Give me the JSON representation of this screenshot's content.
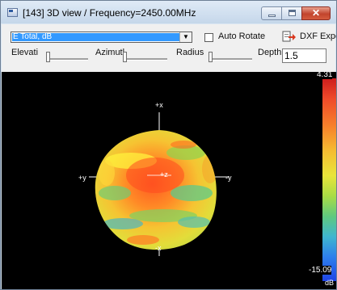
{
  "window": {
    "title": "[143] 3D view / Frequency=2450.00MHz",
    "minimize_symbol": "",
    "maximize_symbol": "",
    "close_symbol": "✕"
  },
  "toolbar": {
    "field_select": {
      "value": "E Total, dB"
    },
    "auto_rotate": {
      "label": "Auto Rotate",
      "checked": false
    },
    "dxf_export": {
      "label": "DXF Expo"
    },
    "elevation": {
      "label": "Elevati",
      "level": 0
    },
    "azimuth": {
      "label": "Azimutl",
      "level": 0
    },
    "radius": {
      "label": "Radius",
      "level": 0
    },
    "depth": {
      "label": "Depth",
      "value": "1.5"
    }
  },
  "view": {
    "axes": {
      "plus_x_top": "+x",
      "minus_x_bottom": "-x",
      "plus_y_left": "+y",
      "minus_y_right": "-y",
      "plus_z": "+z"
    },
    "colorbar": {
      "max": "4.31",
      "min": "-15.09",
      "unit": "dB"
    }
  },
  "colors": {
    "accent_selection": "#3399ff",
    "viewport_background": "#000000",
    "close_button": "#c2442d"
  },
  "icons": [
    "app-window-icon",
    "chevron-down-icon",
    "dxf-export-icon"
  ]
}
